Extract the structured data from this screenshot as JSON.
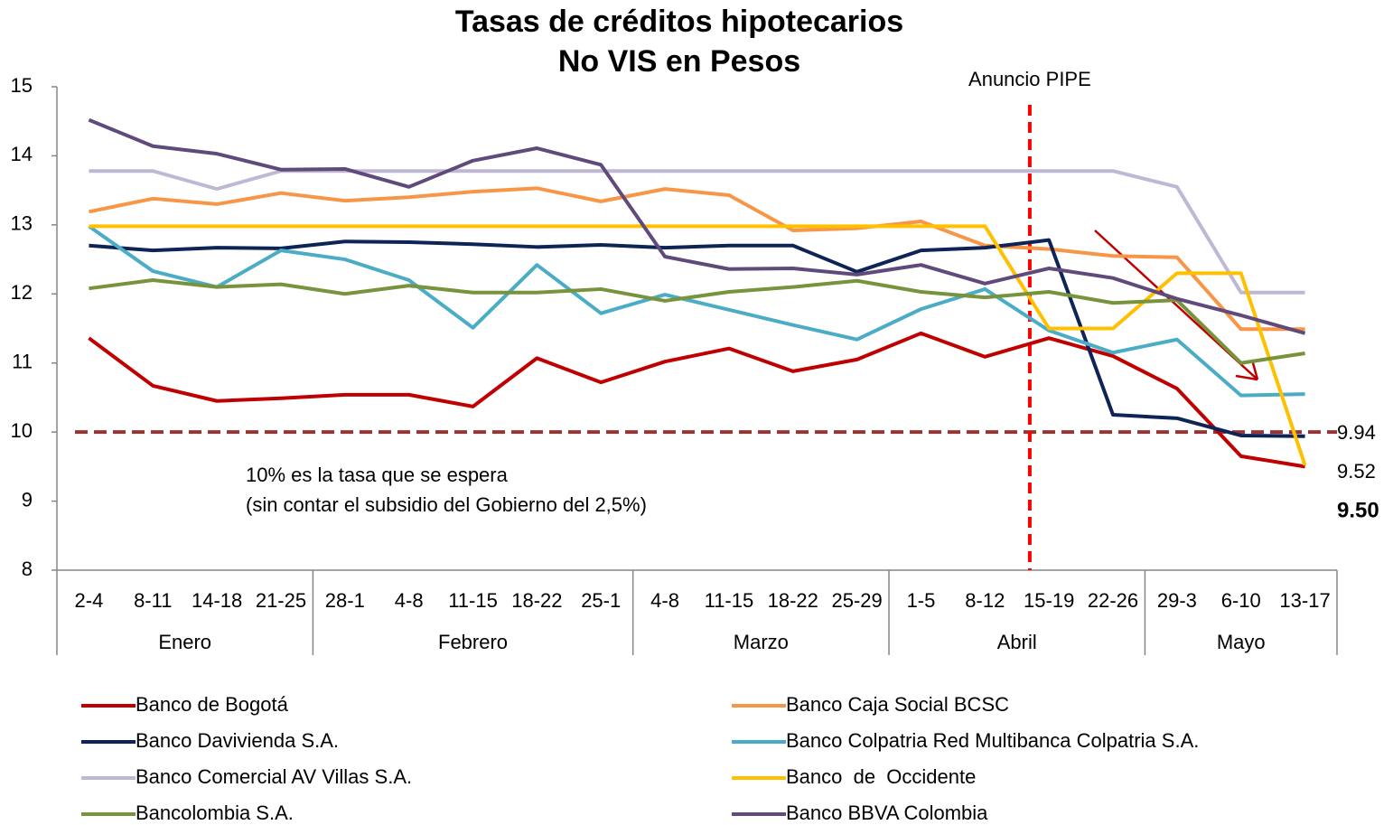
{
  "chart_data": {
    "type": "line",
    "title": [
      "Tasas de créditos hipotecarios",
      "No VIS en Pesos"
    ],
    "categories": [
      "2-4",
      "8-11",
      "14-18",
      "21-25",
      "28-1",
      "4-8",
      "11-15",
      "18-22",
      "25-1",
      "4-8",
      "11-15",
      "18-22",
      "25-29",
      "1-5",
      "8-12",
      "15-19",
      "22-26",
      "29-3",
      "6-10",
      "13-17"
    ],
    "groups": [
      {
        "name": "Enero",
        "span": [
          0,
          3
        ]
      },
      {
        "name": "Febrero",
        "span": [
          4,
          8
        ]
      },
      {
        "name": "Marzo",
        "span": [
          9,
          12
        ]
      },
      {
        "name": "Abril",
        "span": [
          13,
          16
        ]
      },
      {
        "name": "Mayo",
        "span": [
          17,
          19
        ]
      }
    ],
    "series": [
      {
        "name": "Banco de Bogotá",
        "color": "#c00000",
        "values": [
          11.36,
          10.67,
          10.45,
          10.49,
          10.54,
          10.54,
          10.37,
          11.07,
          10.72,
          11.02,
          11.21,
          10.88,
          11.05,
          11.43,
          11.09,
          11.36,
          11.1,
          10.63,
          9.65,
          9.5
        ]
      },
      {
        "name": "Banco Caja Social BCSC",
        "color": "#f79646",
        "values": [
          13.19,
          13.38,
          13.3,
          13.46,
          13.35,
          13.4,
          13.48,
          13.53,
          13.34,
          13.52,
          13.43,
          12.92,
          12.95,
          13.05,
          12.7,
          12.65,
          12.55,
          12.53,
          11.49,
          11.49
        ]
      },
      {
        "name": "Banco Davivienda S.A.",
        "color": "#0e2356",
        "values": [
          12.7,
          12.63,
          12.67,
          12.66,
          12.76,
          12.75,
          12.72,
          12.68,
          12.71,
          12.67,
          12.7,
          12.7,
          12.32,
          12.63,
          12.67,
          12.78,
          10.25,
          10.2,
          9.95,
          9.94
        ]
      },
      {
        "name": "Banco Colpatria Red Multibanca Colpatria S.A.",
        "color": "#4bacc6",
        "values": [
          12.98,
          12.33,
          12.1,
          12.63,
          12.5,
          12.2,
          11.51,
          12.42,
          11.72,
          11.99,
          11.77,
          11.55,
          11.34,
          11.78,
          12.07,
          11.47,
          11.15,
          11.34,
          10.53,
          10.55
        ]
      },
      {
        "name": "Banco Comercial AV Villas S.A.",
        "color": "#bfb7d3",
        "values": [
          13.78,
          13.78,
          13.52,
          13.78,
          13.78,
          13.78,
          13.78,
          13.78,
          13.78,
          13.78,
          13.78,
          13.78,
          13.78,
          13.78,
          13.78,
          13.78,
          13.78,
          13.55,
          12.02,
          12.02
        ]
      },
      {
        "name": "Banco  de  Occidente",
        "color": "#ffc000",
        "values": [
          12.98,
          12.98,
          12.98,
          12.98,
          12.98,
          12.98,
          12.98,
          12.98,
          12.98,
          12.98,
          12.98,
          12.98,
          12.98,
          12.98,
          12.98,
          11.5,
          11.5,
          12.3,
          12.3,
          9.52
        ]
      },
      {
        "name": "Bancolombia S.A.",
        "color": "#77933c",
        "values": [
          12.08,
          12.2,
          12.1,
          12.14,
          12.0,
          12.12,
          12.02,
          12.02,
          12.07,
          11.9,
          12.03,
          12.1,
          12.19,
          12.03,
          11.95,
          12.03,
          11.87,
          11.91,
          11.0,
          11.14
        ]
      },
      {
        "name": "Banco BBVA Colombia",
        "color": "#604a7b",
        "values": [
          14.52,
          14.14,
          14.03,
          13.8,
          13.81,
          13.55,
          13.93,
          14.11,
          13.87,
          12.54,
          12.36,
          12.37,
          12.28,
          12.42,
          12.15,
          12.37,
          12.23,
          11.93,
          11.69,
          11.43
        ]
      }
    ],
    "ylim": [
      8,
      15
    ],
    "yticks": [
      8,
      9,
      10,
      11,
      12,
      13,
      14,
      15
    ],
    "reference_line": {
      "value": 10,
      "color": "#943634"
    },
    "event": {
      "label": "Anuncio PIPE",
      "color": "#ff0000"
    },
    "reference_note": [
      "10% es la tasa que se espera",
      "(sin contar el subsidio del Gobierno del 2,5%)"
    ],
    "end_labels": [
      {
        "text": "9.94",
        "color": "#000000"
      },
      {
        "text": "9.52",
        "color": "#000000"
      },
      {
        "text": "9.50",
        "color": "#c00000"
      }
    ]
  }
}
